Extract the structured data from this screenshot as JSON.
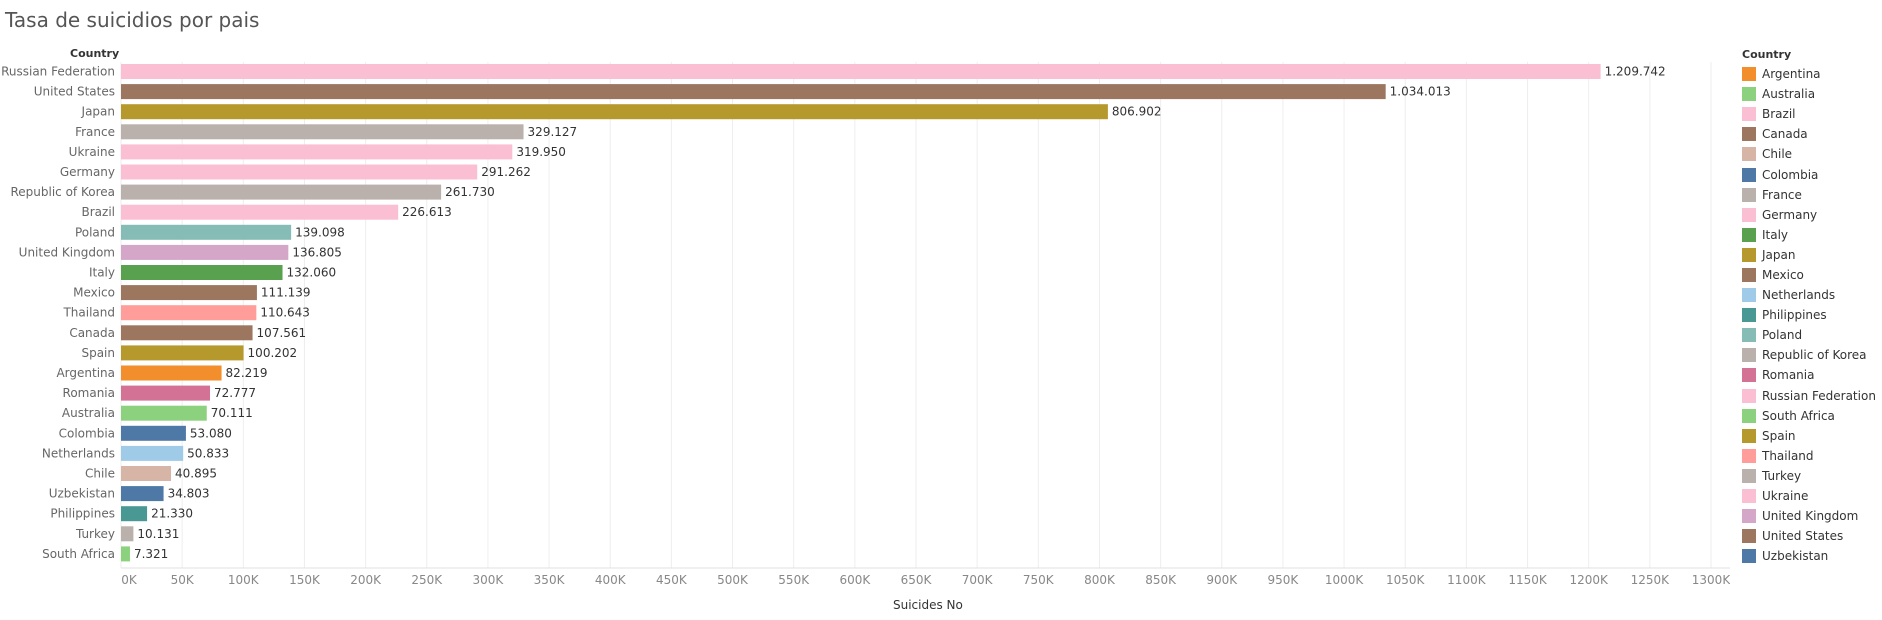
{
  "title": "Tasa de suicidios por pais",
  "row_header": "Country",
  "legend_title": "Country",
  "x_axis_title": "Suicides No",
  "legend": [
    {
      "name": "Argentina",
      "color": "#F28E2B"
    },
    {
      "name": "Australia",
      "color": "#8CD17D"
    },
    {
      "name": "Brazil",
      "color": "#FABFD2"
    },
    {
      "name": "Canada",
      "color": "#9D7660"
    },
    {
      "name": "Chile",
      "color": "#D7B5A6"
    },
    {
      "name": "Colombia",
      "color": "#4E79A7"
    },
    {
      "name": "France",
      "color": "#BAB0AC"
    },
    {
      "name": "Germany",
      "color": "#FABFD2"
    },
    {
      "name": "Italy",
      "color": "#59A14F"
    },
    {
      "name": "Japan",
      "color": "#B6992D"
    },
    {
      "name": "Mexico",
      "color": "#9D7660"
    },
    {
      "name": "Netherlands",
      "color": "#A0CBE8"
    },
    {
      "name": "Philippines",
      "color": "#499894"
    },
    {
      "name": "Poland",
      "color": "#86BCB6"
    },
    {
      "name": "Republic of Korea",
      "color": "#BAB0AC"
    },
    {
      "name": "Romania",
      "color": "#D37295"
    },
    {
      "name": "Russian Federation",
      "color": "#FABFD2"
    },
    {
      "name": "South Africa",
      "color": "#8CD17D"
    },
    {
      "name": "Spain",
      "color": "#B6992D"
    },
    {
      "name": "Thailand",
      "color": "#FF9D9A"
    },
    {
      "name": "Turkey",
      "color": "#BAB0AC"
    },
    {
      "name": "Ukraine",
      "color": "#FABFD2"
    },
    {
      "name": "United Kingdom",
      "color": "#D4A6C8"
    },
    {
      "name": "United States",
      "color": "#9D7660"
    },
    {
      "name": "Uzbekistan",
      "color": "#4E79A7"
    }
  ],
  "chart_data": {
    "type": "bar",
    "orientation": "horizontal",
    "title": "Tasa de suicidios por pais",
    "xlabel": "Suicides No",
    "ylabel": "Country",
    "xlim": [
      0,
      1300000
    ],
    "x_ticks": [
      {
        "value": 0,
        "label": "0K"
      },
      {
        "value": 50000,
        "label": "50K"
      },
      {
        "value": 100000,
        "label": "100K"
      },
      {
        "value": 150000,
        "label": "150K"
      },
      {
        "value": 200000,
        "label": "200K"
      },
      {
        "value": 250000,
        "label": "250K"
      },
      {
        "value": 300000,
        "label": "300K"
      },
      {
        "value": 350000,
        "label": "350K"
      },
      {
        "value": 400000,
        "label": "400K"
      },
      {
        "value": 450000,
        "label": "450K"
      },
      {
        "value": 500000,
        "label": "500K"
      },
      {
        "value": 550000,
        "label": "550K"
      },
      {
        "value": 600000,
        "label": "600K"
      },
      {
        "value": 650000,
        "label": "650K"
      },
      {
        "value": 700000,
        "label": "700K"
      },
      {
        "value": 750000,
        "label": "750K"
      },
      {
        "value": 800000,
        "label": "800K"
      },
      {
        "value": 850000,
        "label": "850K"
      },
      {
        "value": 900000,
        "label": "900K"
      },
      {
        "value": 950000,
        "label": "950K"
      },
      {
        "value": 1000000,
        "label": "1000K"
      },
      {
        "value": 1050000,
        "label": "1050K"
      },
      {
        "value": 1100000,
        "label": "1100K"
      },
      {
        "value": 1150000,
        "label": "1150K"
      },
      {
        "value": 1200000,
        "label": "1200K"
      },
      {
        "value": 1250000,
        "label": "1250K"
      },
      {
        "value": 1300000,
        "label": "1300K"
      }
    ],
    "grid": "vertical",
    "legend_position": "right",
    "bars": [
      {
        "category": "Russian Federation",
        "value": 1209742,
        "label": "1.209.742",
        "color": "#FABFD2"
      },
      {
        "category": "United States",
        "value": 1034013,
        "label": "1.034.013",
        "color": "#9D7660"
      },
      {
        "category": "Japan",
        "value": 806902,
        "label": "806.902",
        "color": "#B6992D"
      },
      {
        "category": "France",
        "value": 329127,
        "label": "329.127",
        "color": "#BAB0AC"
      },
      {
        "category": "Ukraine",
        "value": 319950,
        "label": "319.950",
        "color": "#FABFD2"
      },
      {
        "category": "Germany",
        "value": 291262,
        "label": "291.262",
        "color": "#FABFD2"
      },
      {
        "category": "Republic of Korea",
        "value": 261730,
        "label": "261.730",
        "color": "#BAB0AC"
      },
      {
        "category": "Brazil",
        "value": 226613,
        "label": "226.613",
        "color": "#FABFD2"
      },
      {
        "category": "Poland",
        "value": 139098,
        "label": "139.098",
        "color": "#86BCB6"
      },
      {
        "category": "United Kingdom",
        "value": 136805,
        "label": "136.805",
        "color": "#D4A6C8"
      },
      {
        "category": "Italy",
        "value": 132060,
        "label": "132.060",
        "color": "#59A14F"
      },
      {
        "category": "Mexico",
        "value": 111139,
        "label": "111.139",
        "color": "#9D7660"
      },
      {
        "category": "Thailand",
        "value": 110643,
        "label": "110.643",
        "color": "#FF9D9A"
      },
      {
        "category": "Canada",
        "value": 107561,
        "label": "107.561",
        "color": "#9D7660"
      },
      {
        "category": "Spain",
        "value": 100202,
        "label": "100.202",
        "color": "#B6992D"
      },
      {
        "category": "Argentina",
        "value": 82219,
        "label": "82.219",
        "color": "#F28E2B"
      },
      {
        "category": "Romania",
        "value": 72777,
        "label": "72.777",
        "color": "#D37295"
      },
      {
        "category": "Australia",
        "value": 70111,
        "label": "70.111",
        "color": "#8CD17D"
      },
      {
        "category": "Colombia",
        "value": 53080,
        "label": "53.080",
        "color": "#4E79A7"
      },
      {
        "category": "Netherlands",
        "value": 50833,
        "label": "50.833",
        "color": "#A0CBE8"
      },
      {
        "category": "Chile",
        "value": 40895,
        "label": "40.895",
        "color": "#D7B5A6"
      },
      {
        "category": "Uzbekistan",
        "value": 34803,
        "label": "34.803",
        "color": "#4E79A7"
      },
      {
        "category": "Philippines",
        "value": 21330,
        "label": "21.330",
        "color": "#499894"
      },
      {
        "category": "Turkey",
        "value": 10131,
        "label": "10.131",
        "color": "#BAB0AC"
      },
      {
        "category": "South Africa",
        "value": 7321,
        "label": "7.321",
        "color": "#8CD17D"
      }
    ]
  }
}
